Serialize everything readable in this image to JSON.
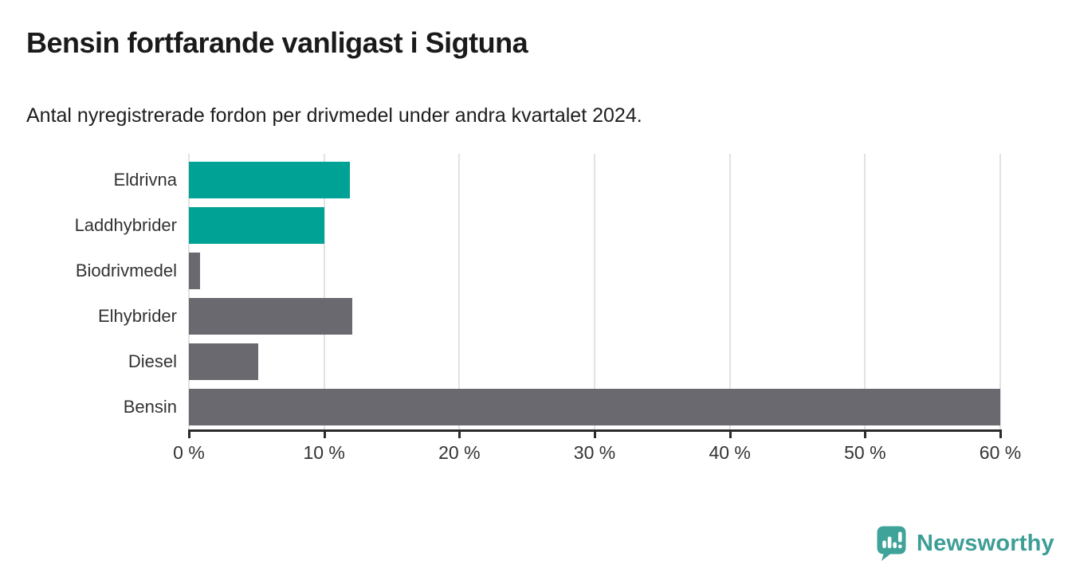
{
  "header": {
    "title": "Bensin fortfarande vanligast i Sigtuna",
    "subtitle": "Antal nyregistrerade fordon per drivmedel under andra kvartalet 2024."
  },
  "chart_data": {
    "type": "bar",
    "orientation": "horizontal",
    "title": "Bensin fortfarande vanligast i Sigtuna",
    "subtitle": "Antal nyregistrerade fordon per drivmedel under andra kvartalet 2024.",
    "categories": [
      "Eldrivna",
      "Laddhybrider",
      "Biodrivmedel",
      "Elhybrider",
      "Diesel",
      "Bensin"
    ],
    "values": [
      11.9,
      10,
      0.8,
      12.1,
      5.1,
      60
    ],
    "unit": "%",
    "xlim": [
      0,
      60
    ],
    "x_ticks": [
      "0 %",
      "10 %",
      "20 %",
      "30 %",
      "40 %",
      "50 %",
      "60 %"
    ],
    "x_tick_values": [
      0,
      10,
      20,
      30,
      40,
      50,
      60
    ],
    "grid": true,
    "legend": "none",
    "bar_colors": [
      "#00a296",
      "#00a296",
      "#6a696f",
      "#6a696f",
      "#6a696f",
      "#6a696f"
    ],
    "highlight_color": "#00a296",
    "default_color": "#6a696f",
    "gridline_color": "#e2e2e2",
    "axis_color": "#2b2b2b"
  },
  "footer": {
    "brand": "Newsworthy",
    "brand_color": "#3d9e96",
    "logo_icon": "newsworthy-chart-bubble-icon"
  }
}
